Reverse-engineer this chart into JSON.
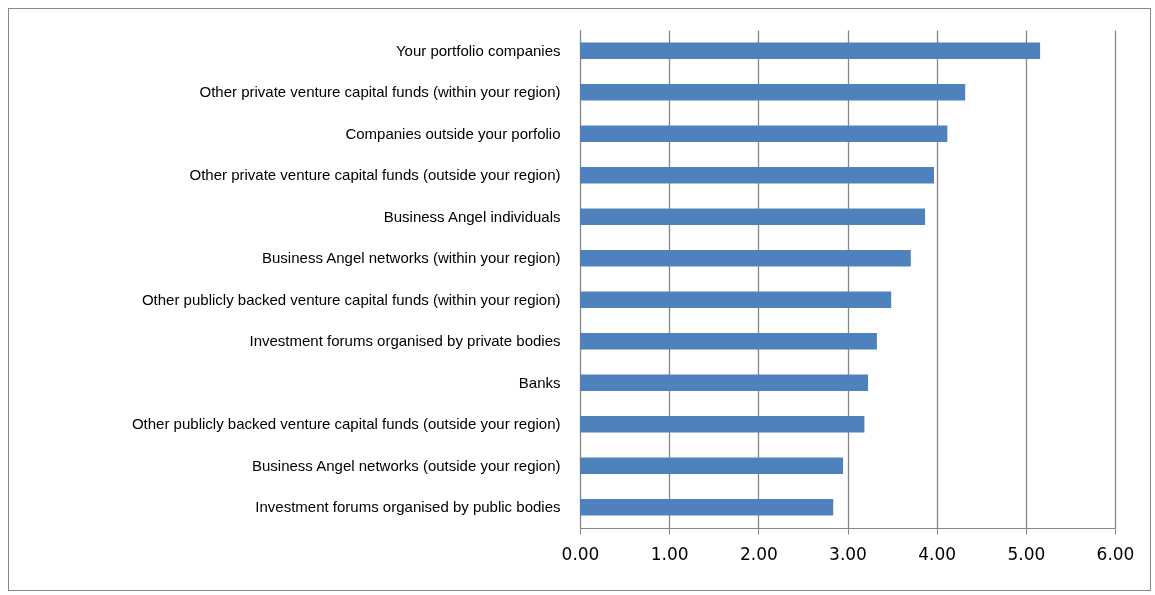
{
  "chart_data": {
    "type": "bar",
    "orientation": "horizontal",
    "categories": [
      "Your  portfolio companies",
      "Other private venture capital funds (within your region)",
      "Companies outside your porfolio",
      "Other private venture capital funds (outside your region)",
      "Business Angel individuals",
      "Business Angel networks  (within your region)",
      "Other publicly backed venture capital funds (within your region)",
      "Investment forums organised by private bodies",
      "Banks",
      "Other publicly backed venture capital funds (outside your region)",
      "Business Angel networks (outside your region)",
      "Investment forums organised by public bodies"
    ],
    "values": [
      5.16,
      4.32,
      4.12,
      3.97,
      3.87,
      3.71,
      3.49,
      3.33,
      3.23,
      3.19,
      2.95,
      2.84
    ],
    "color": "#4f81bd",
    "xlim": [
      0,
      6
    ],
    "xticks": [
      {
        "value": 0,
        "label": "0.00"
      },
      {
        "value": 1,
        "label": "1.00"
      },
      {
        "value": 2,
        "label": "2.00"
      },
      {
        "value": 3,
        "label": "3.00"
      },
      {
        "value": 4,
        "label": "4.00"
      },
      {
        "value": 5,
        "label": "5.00"
      },
      {
        "value": 6,
        "label": "6.00"
      }
    ],
    "grid": "x"
  }
}
